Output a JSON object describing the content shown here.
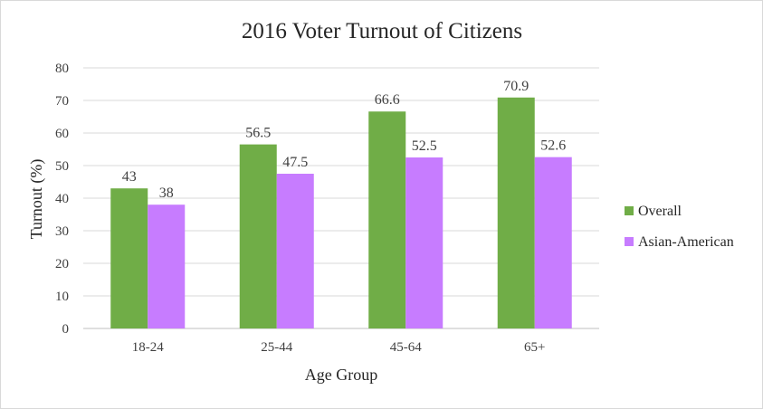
{
  "chart_data": {
    "type": "bar",
    "title": "2016 Voter Turnout of  Citizens",
    "xlabel": "Age Group",
    "ylabel": "Turnout (%)",
    "categories": [
      "18-24",
      "25-44",
      "45-64",
      "65+"
    ],
    "series": [
      {
        "name": "Overall",
        "values": [
          43,
          56.5,
          66.6,
          70.9
        ],
        "labels": [
          "43",
          "56.5",
          "66.6",
          "70.9"
        ],
        "color": "#70ad47"
      },
      {
        "name": "Asian-American",
        "values": [
          38,
          47.5,
          52.5,
          52.6
        ],
        "labels": [
          "38",
          "47.5",
          "52.5",
          "52.6"
        ],
        "color": "#c77cff"
      }
    ],
    "ylim": [
      0,
      80
    ],
    "yticks": [
      "0",
      "10",
      "20",
      "30",
      "40",
      "50",
      "60",
      "70",
      "80"
    ],
    "grid": true,
    "legend": "right"
  }
}
